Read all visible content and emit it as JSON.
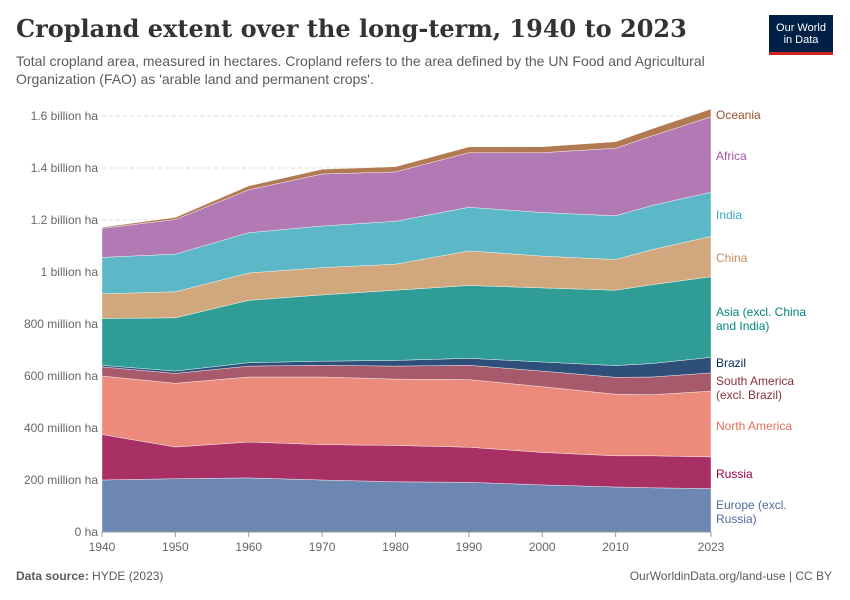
{
  "header": {
    "title": "Cropland extent over the long-term, 1940 to 2023",
    "subtitle": "Total cropland area, measured in hectares. Cropland refers to the area defined by the UN Food and Agricultural Organization (FAO) as 'arable land and permanent crops'.",
    "logo_line1": "Our World",
    "logo_line2": "in Data"
  },
  "footer": {
    "source_label": "Data source:",
    "source_value": "HYDE (2023)",
    "url": "OurWorldinData.org/land-use | CC BY"
  },
  "chart_data": {
    "type": "area",
    "stacked": true,
    "x": [
      1940,
      1950,
      1960,
      1970,
      1980,
      1990,
      2000,
      2010,
      2015,
      2023
    ],
    "xticks": [
      1940,
      1950,
      1960,
      1970,
      1980,
      1990,
      2000,
      2010,
      2023
    ],
    "yticks": [
      0,
      200000000,
      400000000,
      600000000,
      800000000,
      1000000000,
      1200000000,
      1400000000,
      1600000000
    ],
    "ytick_labels": [
      "0 ha",
      "200 million ha",
      "400 million ha",
      "600 million ha",
      "800 million ha",
      "1 billion ha",
      "1.2 billion ha",
      "1.4 billion ha",
      "1.6 billion ha"
    ],
    "ylim": [
      0,
      1600000000
    ],
    "xlim": [
      1940,
      2023
    ],
    "grid": "horizontal-dashed",
    "series": [
      {
        "name": "Europe (excl. Russia)",
        "color": "#6d87b3",
        "values": [
          200000000,
          205000000,
          208000000,
          200000000,
          193000000,
          191000000,
          181000000,
          173000000,
          170000000,
          167000000
        ]
      },
      {
        "name": "Russia",
        "color": "#a83065",
        "values": [
          175000000,
          122000000,
          138000000,
          136000000,
          140000000,
          135000000,
          125000000,
          120000000,
          123000000,
          122000000
        ]
      },
      {
        "name": "North America",
        "color": "#ec8b7c",
        "values": [
          225000000,
          245000000,
          250000000,
          260000000,
          255000000,
          260000000,
          253000000,
          237000000,
          235000000,
          253000000
        ]
      },
      {
        "name": "South America (excl. Brazil)",
        "color": "#a65a6b",
        "values": [
          35000000,
          38000000,
          42000000,
          45000000,
          50000000,
          55000000,
          60000000,
          65000000,
          68000000,
          70000000
        ]
      },
      {
        "name": "Brazil",
        "color": "#2e4f7a",
        "values": [
          6000000,
          9000000,
          13000000,
          16000000,
          22000000,
          27000000,
          35000000,
          45000000,
          52000000,
          60000000
        ]
      },
      {
        "name": "Asia (excl. China and India)",
        "color": "#2f9d95",
        "values": [
          180000000,
          205000000,
          240000000,
          255000000,
          270000000,
          280000000,
          285000000,
          290000000,
          303000000,
          310000000
        ]
      },
      {
        "name": "China",
        "color": "#d1a87d",
        "values": [
          95000000,
          100000000,
          105000000,
          105000000,
          100000000,
          133000000,
          122000000,
          118000000,
          135000000,
          155000000
        ]
      },
      {
        "name": "India",
        "color": "#5cb7c6",
        "values": [
          140000000,
          145000000,
          155000000,
          160000000,
          165000000,
          168000000,
          168000000,
          168000000,
          170000000,
          170000000
        ]
      },
      {
        "name": "Africa",
        "color": "#b27ab5",
        "values": [
          112000000,
          133000000,
          165000000,
          200000000,
          190000000,
          210000000,
          230000000,
          260000000,
          268000000,
          290000000
        ]
      },
      {
        "name": "Oceania",
        "color": "#b27a52",
        "values": [
          4000000,
          8000000,
          15000000,
          18000000,
          20000000,
          22000000,
          23000000,
          25000000,
          27000000,
          30000000
        ]
      }
    ]
  }
}
